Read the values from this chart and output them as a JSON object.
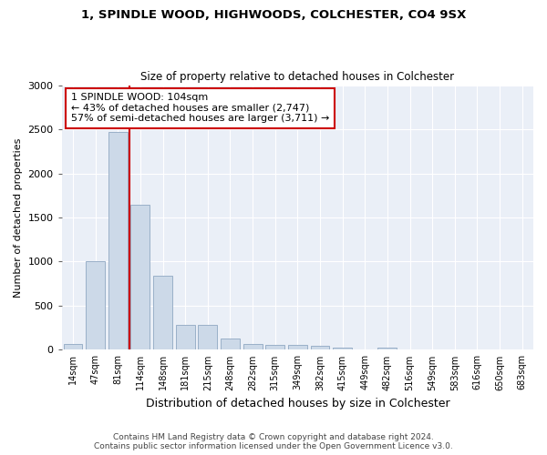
{
  "title1": "1, SPINDLE WOOD, HIGHWOODS, COLCHESTER, CO4 9SX",
  "title2": "Size of property relative to detached houses in Colchester",
  "xlabel": "Distribution of detached houses by size in Colchester",
  "ylabel": "Number of detached properties",
  "categories": [
    "14sqm",
    "47sqm",
    "81sqm",
    "114sqm",
    "148sqm",
    "181sqm",
    "215sqm",
    "248sqm",
    "282sqm",
    "315sqm",
    "349sqm",
    "382sqm",
    "415sqm",
    "449sqm",
    "482sqm",
    "516sqm",
    "549sqm",
    "583sqm",
    "616sqm",
    "650sqm",
    "683sqm"
  ],
  "values": [
    65,
    1000,
    2470,
    1640,
    840,
    280,
    280,
    125,
    65,
    55,
    55,
    50,
    30,
    0,
    30,
    0,
    0,
    0,
    0,
    0,
    0
  ],
  "bar_color": "#ccd9e8",
  "bar_edge_color": "#9ab0c8",
  "vline_color": "#cc0000",
  "annotation_text": "1 SPINDLE WOOD: 104sqm\n← 43% of detached houses are smaller (2,747)\n57% of semi-detached houses are larger (3,711) →",
  "annotation_box_color": "white",
  "annotation_box_edge_color": "#cc0000",
  "ylim": [
    0,
    3000
  ],
  "yticks": [
    0,
    500,
    1000,
    1500,
    2000,
    2500,
    3000
  ],
  "bg_color": "#eaeff7",
  "footer_line1": "Contains HM Land Registry data © Crown copyright and database right 2024.",
  "footer_line2": "Contains public sector information licensed under the Open Government Licence v3.0."
}
